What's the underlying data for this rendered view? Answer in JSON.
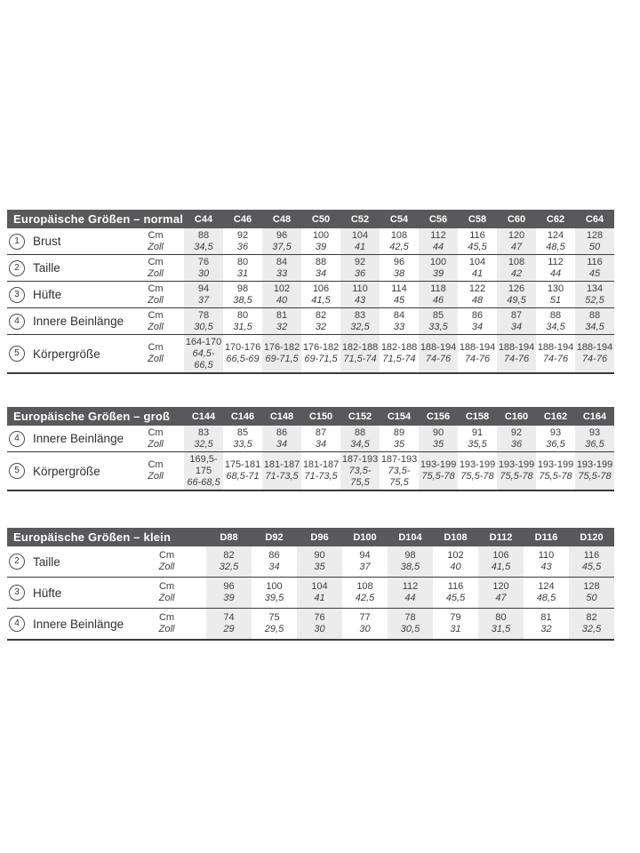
{
  "colors": {
    "header_bg": "#59595b",
    "header_text": "#ffffff",
    "shaded_column": "#ececec",
    "separator_line": "#3a3a3a",
    "data_text": "#3d3d3d",
    "page_bg": "#ffffff"
  },
  "units": {
    "cm": "Cm",
    "zoll": "Zoll"
  },
  "tables": [
    {
      "title": "Europäische Größen – normal",
      "sizes": [
        "C44",
        "C46",
        "C48",
        "C50",
        "C52",
        "C54",
        "C56",
        "C58",
        "C60",
        "C62",
        "C64"
      ],
      "rows": [
        {
          "num": "1",
          "label": "Brust",
          "cm": [
            "88",
            "92",
            "96",
            "100",
            "104",
            "108",
            "112",
            "116",
            "120",
            "124",
            "128"
          ],
          "zoll": [
            "34,5",
            "36",
            "37,5",
            "39",
            "41",
            "42,5",
            "44",
            "45,5",
            "47",
            "48,5",
            "50"
          ]
        },
        {
          "num": "2",
          "label": "Taille",
          "cm": [
            "76",
            "80",
            "84",
            "88",
            "92",
            "96",
            "100",
            "104",
            "108",
            "112",
            "116"
          ],
          "zoll": [
            "30",
            "31",
            "33",
            "34",
            "36",
            "38",
            "39",
            "41",
            "42",
            "44",
            "45"
          ]
        },
        {
          "num": "3",
          "label": "Hüfte",
          "cm": [
            "94",
            "98",
            "102",
            "106",
            "110",
            "114",
            "118",
            "122",
            "126",
            "130",
            "134"
          ],
          "zoll": [
            "37",
            "38,5",
            "40",
            "41,5",
            "43",
            "45",
            "46",
            "48",
            "49,5",
            "51",
            "52,5"
          ]
        },
        {
          "num": "4",
          "label": "Innere Beinlänge",
          "cm": [
            "78",
            "80",
            "81",
            "82",
            "83",
            "84",
            "85",
            "86",
            "87",
            "88",
            "88"
          ],
          "zoll": [
            "30,5",
            "31,5",
            "32",
            "32",
            "32,5",
            "33",
            "33,5",
            "34",
            "34",
            "34,5",
            "34,5"
          ]
        },
        {
          "num": "5",
          "label": "Körpergröße",
          "cm": [
            "164-170",
            "170-176",
            "176-182",
            "176-182",
            "182-188",
            "182-188",
            "188-194",
            "188-194",
            "188-194",
            "188-194",
            "188-194"
          ],
          "zoll": [
            "64,5-66,5",
            "66,5-69",
            "69-71,5",
            "69-71,5",
            "71,5-74",
            "71,5-74",
            "74-76",
            "74-76",
            "74-76",
            "74-76",
            "74-76"
          ]
        }
      ]
    },
    {
      "title": "Europäische Größen – groß",
      "sizes": [
        "C144",
        "C146",
        "C148",
        "C150",
        "C152",
        "C154",
        "C156",
        "C158",
        "C160",
        "C162",
        "C164"
      ],
      "rows": [
        {
          "num": "4",
          "label": "Innere Beinlänge",
          "cm": [
            "83",
            "85",
            "86",
            "87",
            "88",
            "89",
            "90",
            "91",
            "92",
            "93",
            "93"
          ],
          "zoll": [
            "32,5",
            "33,5",
            "34",
            "34",
            "34,5",
            "35",
            "35",
            "35,5",
            "36",
            "36,5",
            "36,5"
          ]
        },
        {
          "num": "5",
          "label": "Körpergröße",
          "cm": [
            "169,5-175",
            "175-181",
            "181-187",
            "181-187",
            "187-193",
            "187-193",
            "193-199",
            "193-199",
            "193-199",
            "193-199",
            "193-199"
          ],
          "zoll": [
            "66-68,5",
            "68,5-71",
            "71-73,5",
            "71-73,5",
            "73,5-75,5",
            "73,5-75,5",
            "75,5-78",
            "75,5-78",
            "75,5-78",
            "75,5-78",
            "75,5-78"
          ]
        }
      ]
    },
    {
      "title": "Europäische Größen – klein",
      "sizes": [
        "D88",
        "D92",
        "D96",
        "D100",
        "D104",
        "D108",
        "D112",
        "D116",
        "D120"
      ],
      "rows": [
        {
          "num": "2",
          "label": "Taille",
          "cm": [
            "82",
            "86",
            "90",
            "94",
            "98",
            "102",
            "106",
            "110",
            "116"
          ],
          "zoll": [
            "32,5",
            "34",
            "35",
            "37",
            "38,5",
            "40",
            "41,5",
            "43",
            "45,5"
          ]
        },
        {
          "num": "3",
          "label": "Hüfte",
          "cm": [
            "96",
            "100",
            "104",
            "108",
            "112",
            "116",
            "120",
            "124",
            "128"
          ],
          "zoll": [
            "39",
            "39,5",
            "41",
            "42,5",
            "44",
            "45,5",
            "47",
            "48,5",
            "50"
          ]
        },
        {
          "num": "4",
          "label": "Innere Beinlänge",
          "cm": [
            "74",
            "75",
            "76",
            "77",
            "78",
            "79",
            "80",
            "81",
            "82"
          ],
          "zoll": [
            "29",
            "29,5",
            "30",
            "30",
            "30,5",
            "31",
            "31,5",
            "32",
            "32,5"
          ]
        }
      ]
    }
  ]
}
